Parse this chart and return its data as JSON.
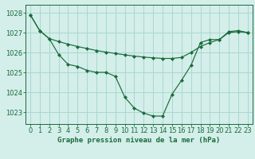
{
  "title": "Graphe pression niveau de la mer (hPa)",
  "background_color": "#d4eeea",
  "grid_color": "#a8d8d0",
  "line_color": "#1a6b3a",
  "marker_color": "#1a6b3a",
  "xlim": [
    -0.5,
    23.5
  ],
  "ylim": [
    1022.4,
    1028.4
  ],
  "yticks": [
    1023,
    1024,
    1025,
    1026,
    1027,
    1028
  ],
  "xticks": [
    0,
    1,
    2,
    3,
    4,
    5,
    6,
    7,
    8,
    9,
    10,
    11,
    12,
    13,
    14,
    15,
    16,
    17,
    18,
    19,
    20,
    21,
    22,
    23
  ],
  "series1_x": [
    0,
    1,
    2,
    3,
    4,
    5,
    6,
    7,
    8,
    9,
    10,
    11,
    12,
    13,
    14,
    15,
    16,
    17,
    18,
    19,
    20,
    21,
    22,
    23
  ],
  "series1_y": [
    1027.9,
    1027.1,
    1026.7,
    1025.9,
    1025.4,
    1025.3,
    1025.1,
    1025.0,
    1025.0,
    1024.8,
    1023.75,
    1023.2,
    1022.95,
    1022.8,
    1022.8,
    1023.9,
    1024.6,
    1025.35,
    1026.5,
    1026.65,
    1026.65,
    1027.05,
    1027.1,
    1027.0
  ],
  "series2_x": [
    0,
    1,
    2,
    3,
    4,
    5,
    6,
    7,
    8,
    9,
    10,
    11,
    12,
    13,
    14,
    15,
    16,
    17,
    18,
    19,
    20,
    21,
    22,
    23
  ],
  "series2_y": [
    1027.9,
    1027.1,
    1026.7,
    1026.55,
    1026.42,
    1026.3,
    1026.2,
    1026.1,
    1026.02,
    1025.95,
    1025.88,
    1025.82,
    1025.77,
    1025.73,
    1025.7,
    1025.7,
    1025.75,
    1026.0,
    1026.3,
    1026.5,
    1026.65,
    1027.0,
    1027.05,
    1027.0
  ],
  "xlabel_fontsize": 6.5,
  "tick_fontsize": 6.0
}
